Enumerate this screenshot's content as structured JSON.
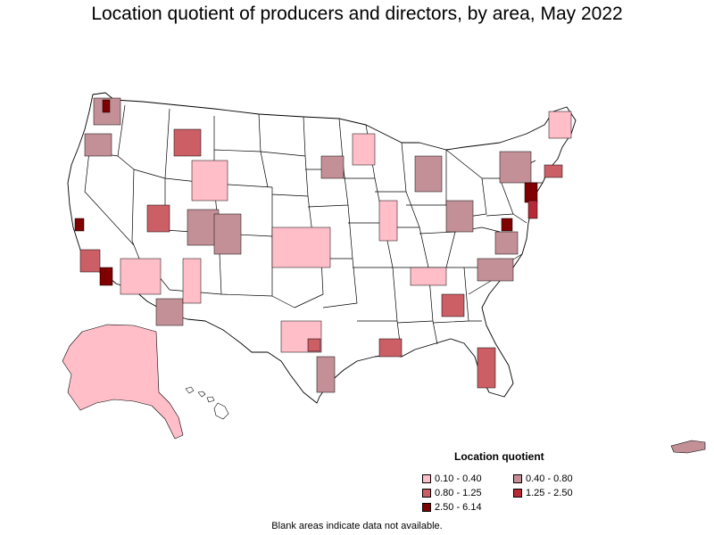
{
  "title": "Location quotient of producers and directors, by area, May 2022",
  "legend": {
    "title": "Location quotient",
    "items": [
      {
        "label": "0.10 - 0.40",
        "color": "#ffbec8"
      },
      {
        "label": "0.40 - 0.80",
        "color": "#c49098"
      },
      {
        "label": "0.80 - 1.25",
        "color": "#cc5e66"
      },
      {
        "label": "1.25 - 2.50",
        "color": "#b52a36"
      },
      {
        "label": "2.50 - 6.14",
        "color": "#800000"
      }
    ]
  },
  "footnote": "Blank areas indicate data not available.",
  "colors": {
    "no_data": "#ffffff",
    "outline": "#000000"
  }
}
